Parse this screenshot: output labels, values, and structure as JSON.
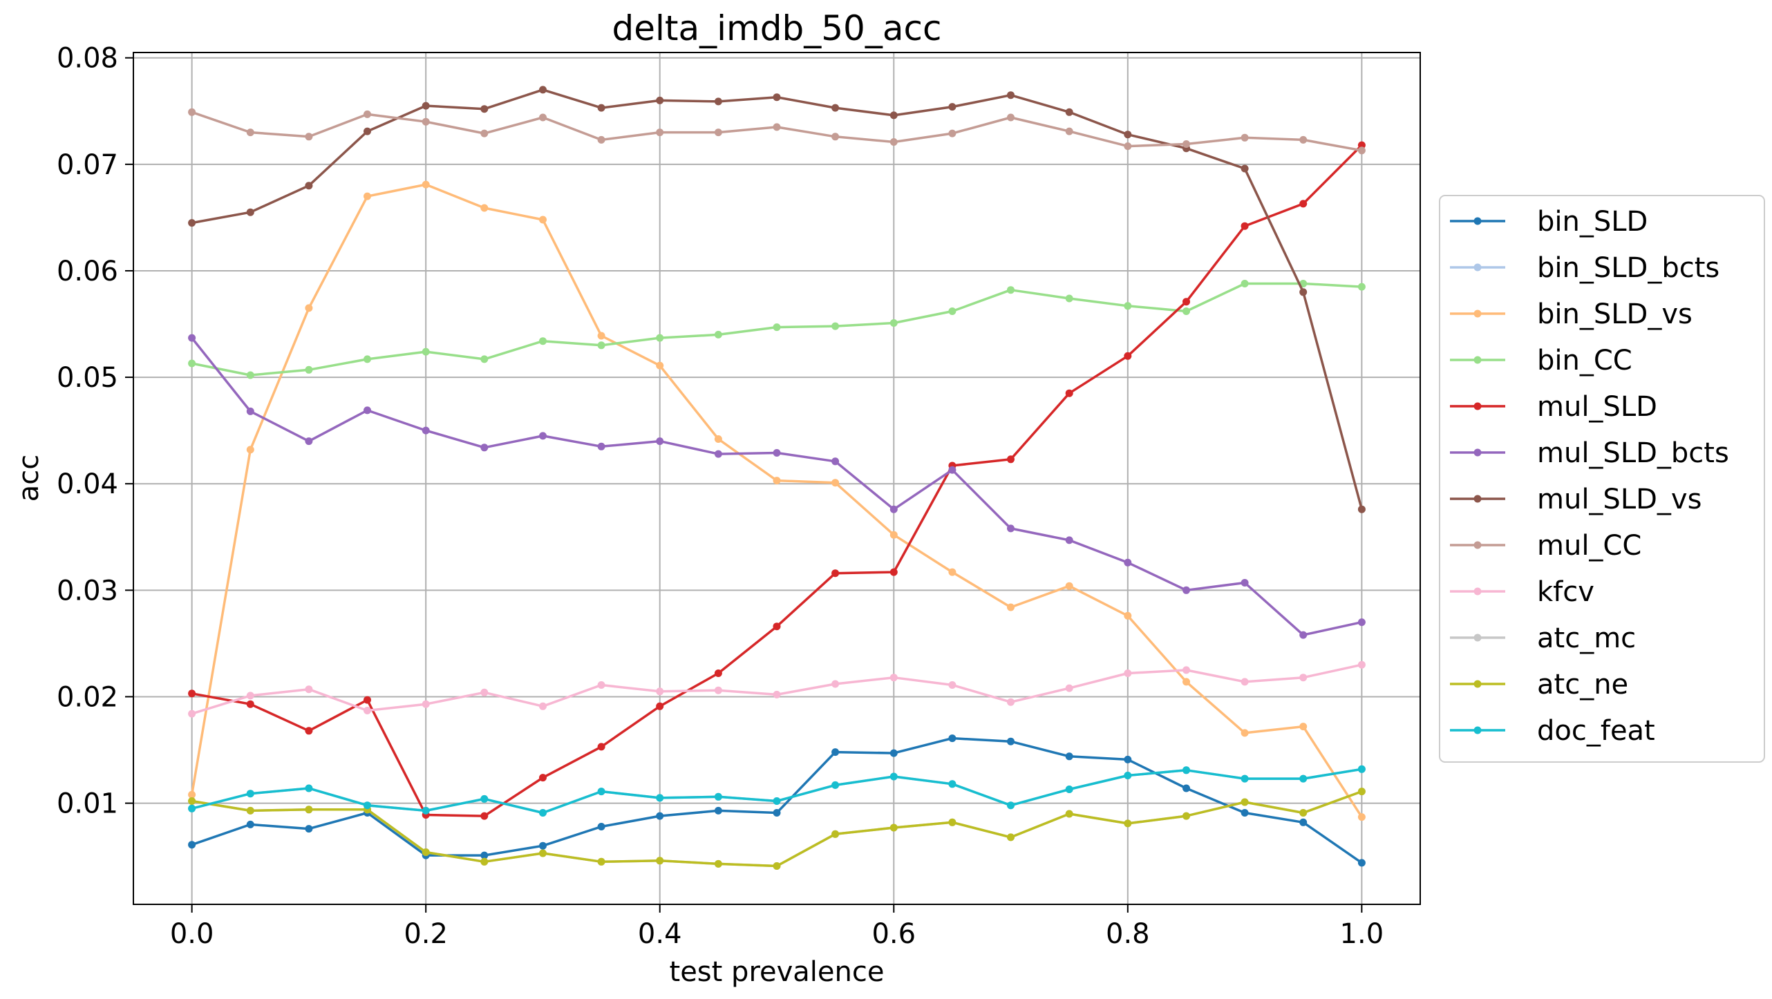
{
  "chart_data": {
    "type": "line",
    "title": "delta_imdb_50_acc",
    "xlabel": "test prevalence",
    "ylabel": "acc",
    "xlim": [
      -0.05,
      1.05
    ],
    "ylim": [
      0.0005,
      0.0805
    ],
    "xticks": [
      0.0,
      0.2,
      0.4,
      0.6,
      0.8,
      1.0
    ],
    "xtick_labels": [
      "0.0",
      "0.2",
      "0.4",
      "0.6",
      "0.8",
      "1.0"
    ],
    "yticks": [
      0.01,
      0.02,
      0.03,
      0.04,
      0.05,
      0.06,
      0.07,
      0.08
    ],
    "ytick_labels": [
      "0.01",
      "0.02",
      "0.03",
      "0.04",
      "0.05",
      "0.06",
      "0.07",
      "0.08"
    ],
    "grid": true,
    "legend_position": "outside-right",
    "x": [
      0.0,
      0.05,
      0.1,
      0.15,
      0.2,
      0.25,
      0.3,
      0.35,
      0.4,
      0.45,
      0.5,
      0.55,
      0.6,
      0.65,
      0.7,
      0.75,
      0.8,
      0.85,
      0.9,
      0.95,
      1.0
    ],
    "series": [
      {
        "name": "bin_SLD",
        "color": "#1f77b4",
        "values": [
          0.0061,
          0.008,
          0.0076,
          0.0091,
          0.0051,
          0.0051,
          0.006,
          0.0078,
          0.0088,
          0.0093,
          0.0091,
          0.0148,
          0.0147,
          0.0161,
          0.0158,
          0.0144,
          0.0141,
          0.0114,
          0.0091,
          0.0082,
          0.0044
        ]
      },
      {
        "name": "bin_SLD_bcts",
        "color": "#aec7e8",
        "values": [
          0.0095,
          0.0109,
          0.0114,
          0.0098,
          0.0093,
          0.0104,
          0.0091,
          0.0111,
          0.0105,
          0.0106,
          0.0102,
          0.0117,
          0.0125,
          0.0118,
          0.0098,
          0.0113,
          0.0126,
          0.0131,
          0.0123,
          0.0123,
          0.0132
        ]
      },
      {
        "name": "bin_SLD_vs",
        "color": "#ffbb78",
        "values": [
          0.0108,
          0.0432,
          0.0565,
          0.067,
          0.0681,
          0.0659,
          0.0648,
          0.0539,
          0.0511,
          0.0442,
          0.0403,
          0.0401,
          0.0352,
          0.0317,
          0.0284,
          0.0304,
          0.0276,
          0.0214,
          0.0166,
          0.0172,
          0.0087
        ]
      },
      {
        "name": "bin_CC",
        "color": "#98df8a",
        "values": [
          0.0513,
          0.0502,
          0.0507,
          0.0517,
          0.0524,
          0.0517,
          0.0534,
          0.053,
          0.0537,
          0.054,
          0.0547,
          0.0548,
          0.0551,
          0.0562,
          0.0582,
          0.0574,
          0.0567,
          0.0562,
          0.0588,
          0.0588,
          0.0585
        ]
      },
      {
        "name": "mul_SLD",
        "color": "#d62728",
        "values": [
          0.0203,
          0.0193,
          0.0168,
          0.0197,
          0.0089,
          0.0088,
          0.0124,
          0.0153,
          0.0191,
          0.0222,
          0.0266,
          0.0316,
          0.0317,
          0.0417,
          0.0423,
          0.0485,
          0.052,
          0.0571,
          0.0642,
          0.0663,
          0.0718
        ]
      },
      {
        "name": "mul_SLD_bcts",
        "color": "#9467bd",
        "values": [
          0.0537,
          0.0468,
          0.044,
          0.0469,
          0.045,
          0.0434,
          0.0445,
          0.0435,
          0.044,
          0.0428,
          0.0429,
          0.0421,
          0.0376,
          0.0413,
          0.0358,
          0.0347,
          0.0326,
          0.03,
          0.0307,
          0.0258,
          0.027
        ]
      },
      {
        "name": "mul_SLD_vs",
        "color": "#8c564b",
        "values": [
          0.0645,
          0.0655,
          0.068,
          0.0731,
          0.0755,
          0.0752,
          0.077,
          0.0753,
          0.076,
          0.0759,
          0.0763,
          0.0753,
          0.0746,
          0.0754,
          0.0765,
          0.0749,
          0.0728,
          0.0715,
          0.0696,
          0.058,
          0.0376
        ]
      },
      {
        "name": "mul_CC",
        "color": "#c49c94",
        "values": [
          0.0749,
          0.073,
          0.0726,
          0.0747,
          0.074,
          0.0729,
          0.0744,
          0.0723,
          0.073,
          0.073,
          0.0735,
          0.0726,
          0.0721,
          0.0729,
          0.0744,
          0.0731,
          0.0717,
          0.0719,
          0.0725,
          0.0723,
          0.0713
        ]
      },
      {
        "name": "kfcv",
        "color": "#f7b6d2",
        "values": [
          0.0184,
          0.0201,
          0.0207,
          0.0187,
          0.0193,
          0.0204,
          0.0191,
          0.0211,
          0.0205,
          0.0206,
          0.0202,
          0.0212,
          0.0218,
          0.0211,
          0.0195,
          0.0208,
          0.0222,
          0.0225,
          0.0214,
          0.0218,
          0.023
        ]
      },
      {
        "name": "atc_mc",
        "color": "#c7c7c7",
        "values": [
          0.0102,
          0.0093,
          0.0094,
          0.0094,
          0.0054,
          0.0045,
          0.0053,
          0.0045,
          0.0046,
          0.0043,
          0.0041,
          0.0071,
          0.0077,
          0.0082,
          0.0068,
          0.009,
          0.0081,
          0.0088,
          0.0101,
          0.0091,
          0.0111
        ]
      },
      {
        "name": "atc_ne",
        "color": "#bcbd22",
        "values": [
          0.0102,
          0.0093,
          0.0094,
          0.0094,
          0.0054,
          0.0045,
          0.0053,
          0.0045,
          0.0046,
          0.0043,
          0.0041,
          0.0071,
          0.0077,
          0.0082,
          0.0068,
          0.009,
          0.0081,
          0.0088,
          0.0101,
          0.0091,
          0.0111
        ]
      },
      {
        "name": "doc_feat",
        "color": "#17becf",
        "values": [
          0.0095,
          0.0109,
          0.0114,
          0.0098,
          0.0093,
          0.0104,
          0.0091,
          0.0111,
          0.0105,
          0.0106,
          0.0102,
          0.0117,
          0.0125,
          0.0118,
          0.0098,
          0.0113,
          0.0126,
          0.0131,
          0.0123,
          0.0123,
          0.0132
        ]
      }
    ]
  }
}
